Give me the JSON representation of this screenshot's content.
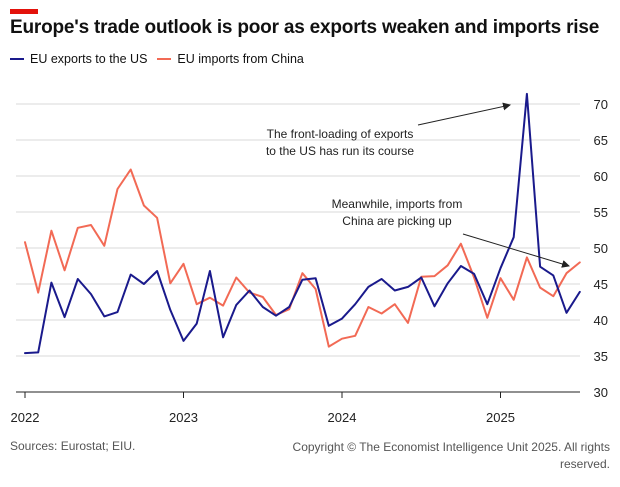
{
  "header": {
    "title": "Europe's trade outlook is poor as exports weaken and imports rise"
  },
  "footer": {
    "sources": "Sources: Eurostat; EIU.",
    "copyright": "Copyright © The Economist Intelligence Unit 2025. All rights reserved."
  },
  "colors": {
    "accent": "#e3120b",
    "exports": "#1a1a8c",
    "imports": "#f26a55",
    "grid": "#d8d8d8"
  },
  "chart_data": {
    "type": "line",
    "title": "Europe's trade outlook is poor as exports weaken and imports rise",
    "xlabel": "",
    "ylabel": "",
    "ylim": [
      30,
      75
    ],
    "yticks": [
      30,
      35,
      40,
      45,
      50,
      55,
      60,
      65,
      70
    ],
    "xticks": [
      "2022",
      "2023",
      "2024",
      "2025"
    ],
    "xlim": [
      "2022-01",
      "2025-07"
    ],
    "grid": true,
    "legend_position": "top-left",
    "x": [
      "2022-01",
      "2022-02",
      "2022-03",
      "2022-04",
      "2022-05",
      "2022-06",
      "2022-07",
      "2022-08",
      "2022-09",
      "2022-10",
      "2022-11",
      "2022-12",
      "2023-01",
      "2023-02",
      "2023-03",
      "2023-04",
      "2023-05",
      "2023-06",
      "2023-07",
      "2023-08",
      "2023-09",
      "2023-10",
      "2023-11",
      "2023-12",
      "2024-01",
      "2024-02",
      "2024-03",
      "2024-04",
      "2024-05",
      "2024-06",
      "2024-07",
      "2024-08",
      "2024-09",
      "2024-10",
      "2024-11",
      "2024-12",
      "2025-01",
      "2025-02",
      "2025-03",
      "2025-04",
      "2025-05",
      "2025-06",
      "2025-07"
    ],
    "series": [
      {
        "name": "EU exports to the US",
        "color": "#1a1a8c",
        "values": [
          35.4,
          35.5,
          45.2,
          40.4,
          45.7,
          43.6,
          40.5,
          41.1,
          46.3,
          45.0,
          46.8,
          41.4,
          37.1,
          39.5,
          46.8,
          37.6,
          42.1,
          44.1,
          41.8,
          40.6,
          41.8,
          45.6,
          45.8,
          39.2,
          40.2,
          42.2,
          44.6,
          45.7,
          44.1,
          44.6,
          45.9,
          41.9,
          45.1,
          47.5,
          46.4,
          42.2,
          47.2,
          51.5,
          71.4,
          47.4,
          46.2,
          41.0,
          43.9
        ]
      },
      {
        "name": "EU imports from China",
        "color": "#f26a55",
        "values": [
          50.8,
          43.8,
          52.4,
          46.9,
          52.8,
          53.2,
          50.3,
          58.2,
          60.9,
          55.9,
          54.2,
          45.1,
          47.8,
          42.2,
          43.1,
          42.0,
          45.9,
          43.8,
          43.2,
          40.7,
          41.5,
          46.5,
          44.3,
          36.3,
          37.4,
          37.8,
          41.8,
          40.9,
          42.2,
          39.6,
          46.0,
          46.1,
          47.6,
          50.6,
          45.9,
          40.3,
          45.8,
          42.8,
          48.7,
          44.5,
          43.3,
          46.5,
          48.0
        ]
      }
    ],
    "annotations": [
      {
        "text": "The front-loading of exports to the US has run its course",
        "lines": [
          "The front-loading of exports",
          "to the US has run its course"
        ],
        "points_to": [
          "2025-03",
          71.4
        ]
      },
      {
        "text": "Meanwhile, imports from China are picking up",
        "lines": [
          "Meanwhile, imports from",
          "China are picking up"
        ],
        "points_to": [
          "2025-06",
          46.5
        ]
      }
    ]
  }
}
